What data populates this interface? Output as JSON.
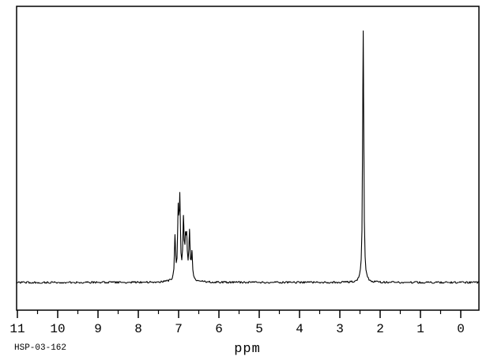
{
  "page": {
    "spectrum_id": "HSP-03-162",
    "background_color": "#ffffff",
    "line_color": "#000000"
  },
  "chart_data": {
    "type": "line",
    "subtype": "1H-NMR-spectrum",
    "title": "",
    "xlabel": "ppm",
    "ylabel": "",
    "x_axis": {
      "left_value": 11,
      "right_value": 0,
      "ticks_major": [
        11,
        10,
        9,
        8,
        7,
        6,
        5,
        4,
        3,
        2,
        1,
        0
      ],
      "ticks_minor": [
        10.5,
        9.5,
        8.5,
        7.5,
        6.5,
        5.5,
        4.5,
        3.5,
        2.5,
        1.5,
        0.5
      ],
      "plot_range": [
        11.02,
        -0.45
      ]
    },
    "y_axis": {
      "visible": false,
      "intensity_normalized_to_max_peak": 1.0
    },
    "grid": false,
    "legend": false,
    "baseline_intensity": 0,
    "noise_amplitude_intensity": 0.003,
    "peak_width_ppm": 0.016,
    "peaks": [
      {
        "ppm": 7.09,
        "intensity": 0.163
      },
      {
        "ppm": 7.01,
        "intensity": 0.248
      },
      {
        "ppm": 6.97,
        "intensity": 0.295
      },
      {
        "ppm": 6.88,
        "intensity": 0.21
      },
      {
        "ppm": 6.83,
        "intensity": 0.113
      },
      {
        "ppm": 6.8,
        "intensity": 0.132
      },
      {
        "ppm": 6.73,
        "intensity": 0.179
      },
      {
        "ppm": 6.67,
        "intensity": 0.097
      },
      {
        "ppm": 2.42,
        "intensity": 1.0
      }
    ],
    "baseline_hump": {
      "ppm": 6.85,
      "intensity": 0.025,
      "width_ppm": 0.14
    },
    "annotations": {
      "bottom_left_text": "HSP-03-162",
      "axis_label_text": "ppm"
    }
  }
}
